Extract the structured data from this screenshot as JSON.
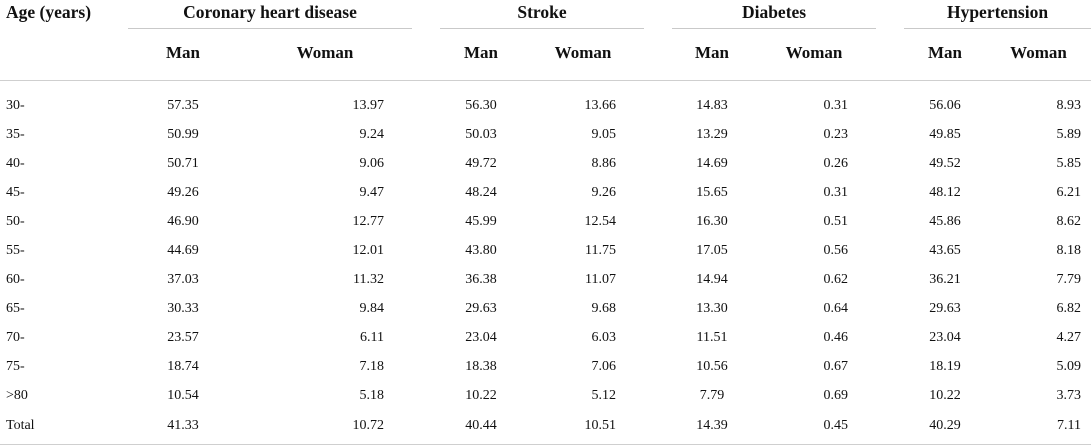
{
  "table": {
    "age_header": "Age (years)",
    "groups": [
      {
        "label": "Coronary heart disease",
        "man": "Man",
        "woman": "Woman"
      },
      {
        "label": "Stroke",
        "man": "Man",
        "woman": "Woman"
      },
      {
        "label": "Diabetes",
        "man": "Man",
        "woman": "Woman"
      },
      {
        "label": "Hypertension",
        "man": "Man",
        "woman": "Woman"
      }
    ],
    "rows": [
      {
        "age": "30-",
        "v": [
          "57.35",
          "13.97",
          "56.30",
          "13.66",
          "14.83",
          "0.31",
          "56.06",
          "8.93"
        ]
      },
      {
        "age": "35-",
        "v": [
          "50.99",
          "9.24",
          "50.03",
          "9.05",
          "13.29",
          "0.23",
          "49.85",
          "5.89"
        ]
      },
      {
        "age": "40-",
        "v": [
          "50.71",
          "9.06",
          "49.72",
          "8.86",
          "14.69",
          "0.26",
          "49.52",
          "5.85"
        ]
      },
      {
        "age": "45-",
        "v": [
          "49.26",
          "9.47",
          "48.24",
          "9.26",
          "15.65",
          "0.31",
          "48.12",
          "6.21"
        ]
      },
      {
        "age": "50-",
        "v": [
          "46.90",
          "12.77",
          "45.99",
          "12.54",
          "16.30",
          "0.51",
          "45.86",
          "8.62"
        ]
      },
      {
        "age": "55-",
        "v": [
          "44.69",
          "12.01",
          "43.80",
          "11.75",
          "17.05",
          "0.56",
          "43.65",
          "8.18"
        ]
      },
      {
        "age": "60-",
        "v": [
          "37.03",
          "11.32",
          "36.38",
          "11.07",
          "14.94",
          "0.62",
          "36.21",
          "7.79"
        ]
      },
      {
        "age": "65-",
        "v": [
          "30.33",
          "9.84",
          "29.63",
          "9.68",
          "13.30",
          "0.64",
          "29.63",
          "6.82"
        ]
      },
      {
        "age": "70-",
        "v": [
          "23.57",
          "6.11",
          "23.04",
          "6.03",
          "11.51",
          "0.46",
          "23.04",
          "4.27"
        ]
      },
      {
        "age": "75-",
        "v": [
          "18.74",
          "7.18",
          "18.38",
          "7.06",
          "10.56",
          "0.67",
          "18.19",
          "5.09"
        ]
      },
      {
        "age": ">80",
        "v": [
          "10.54",
          "5.18",
          "10.22",
          "5.12",
          "7.79",
          "0.69",
          "10.22",
          "3.73"
        ]
      },
      {
        "age": "Total",
        "v": [
          "41.33",
          "10.72",
          "40.44",
          "10.51",
          "14.39",
          "0.45",
          "40.29",
          "7.11"
        ]
      }
    ]
  }
}
